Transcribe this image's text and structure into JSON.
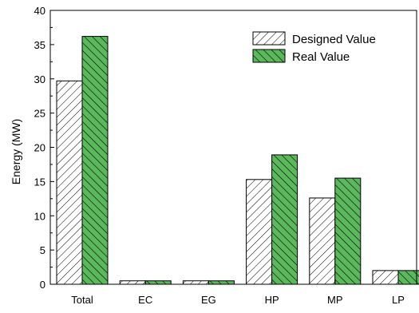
{
  "chart_data": {
    "type": "bar",
    "categories": [
      "Total",
      "EC",
      "EG",
      "HP",
      "MP",
      "LP"
    ],
    "series": [
      {
        "name": "Designed Value",
        "values": [
          29.7,
          0.5,
          0.5,
          15.3,
          12.6,
          2.0
        ]
      },
      {
        "name": "Real Value",
        "values": [
          36.2,
          0.5,
          0.5,
          18.9,
          15.5,
          2.0
        ]
      }
    ],
    "xlabel": "",
    "ylabel": "Energy (MW)",
    "ylim": [
      0,
      40
    ],
    "yticks": [
      0,
      5,
      10,
      15,
      20,
      25,
      30,
      35,
      40
    ],
    "legend_position": "top-right",
    "grid": false,
    "colors": {
      "designed_fill": "#ffffff",
      "designed_hatch": "#000000",
      "real_fill": "#5cb85c",
      "real_hatch": "#000000",
      "axis": "#000000"
    }
  }
}
